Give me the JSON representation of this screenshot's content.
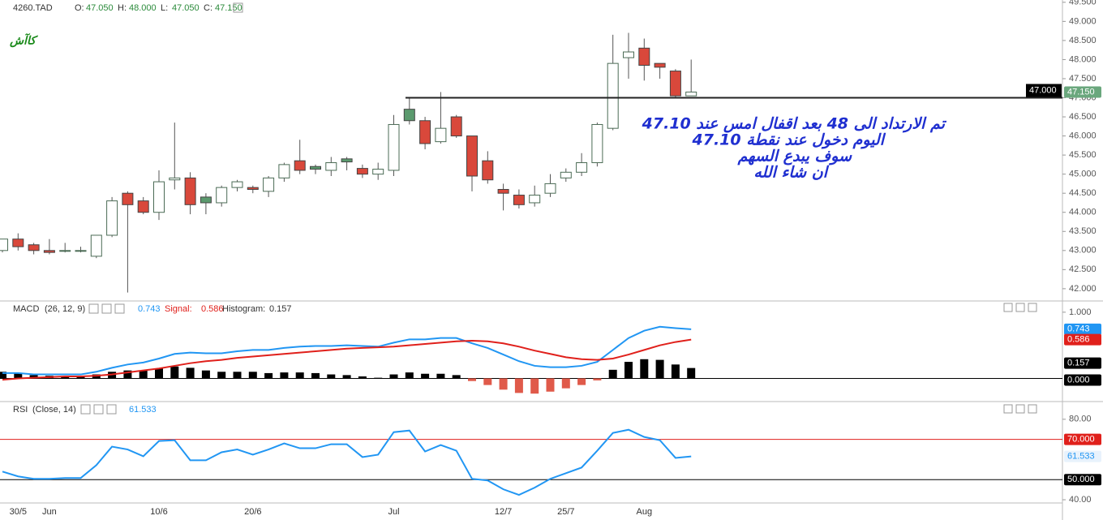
{
  "chart_data": [
    {
      "type": "candlestick",
      "title": "4260.TAD",
      "logo": "كاآش",
      "ohlc_keys": [
        "O:",
        "H:",
        "L:",
        "C:"
      ],
      "last_labels": {
        "open": "47.050",
        "high": "48.000",
        "low": "47.050",
        "close": "47.150"
      },
      "candles": {
        "open": [
          43.0,
          43.3,
          43.15,
          43.0,
          42.98,
          42.98,
          42.85,
          43.4,
          44.5,
          44.3,
          44.0,
          44.85,
          44.9,
          44.4,
          44.25,
          44.65,
          44.65,
          44.55,
          44.9,
          45.35,
          45.2,
          45.1,
          45.4,
          45.15,
          45.0,
          45.1,
          46.7,
          46.4,
          45.85,
          46.5,
          46.0,
          45.35,
          44.6,
          44.45,
          44.25,
          44.5,
          44.9,
          45.05,
          45.3,
          46.2,
          48.05,
          48.3,
          47.9,
          47.7,
          47.05
        ],
        "high": [
          43.3,
          43.45,
          43.2,
          43.3,
          43.2,
          43.1,
          43.4,
          44.4,
          44.55,
          44.4,
          45.1,
          46.35,
          45.05,
          44.5,
          44.7,
          44.85,
          44.7,
          44.95,
          45.3,
          45.9,
          45.25,
          45.45,
          45.45,
          45.25,
          45.3,
          46.55,
          47.0,
          46.5,
          47.15,
          46.55,
          46.0,
          45.6,
          44.75,
          44.6,
          44.7,
          45.0,
          45.15,
          45.55,
          46.35,
          48.65,
          48.7,
          48.55,
          47.9,
          47.75,
          48.0
        ],
        "low": [
          42.95,
          43.0,
          42.9,
          42.9,
          42.95,
          42.95,
          42.8,
          43.35,
          41.9,
          43.95,
          43.8,
          44.6,
          43.95,
          43.95,
          44.15,
          44.55,
          44.5,
          44.4,
          44.8,
          45.0,
          45.0,
          44.95,
          45.1,
          44.9,
          44.85,
          44.95,
          46.3,
          45.65,
          45.8,
          45.95,
          44.55,
          44.75,
          44.05,
          44.1,
          44.15,
          44.4,
          44.8,
          44.95,
          45.2,
          46.15,
          47.5,
          47.45,
          47.5,
          47.0,
          47.05
        ],
        "close": [
          43.3,
          43.1,
          43.0,
          42.95,
          43.0,
          43.0,
          43.4,
          44.3,
          44.2,
          44.0,
          44.8,
          44.9,
          44.2,
          44.25,
          44.65,
          44.8,
          44.6,
          44.9,
          45.25,
          45.1,
          45.13,
          45.3,
          45.32,
          45.0,
          45.13,
          46.3,
          46.4,
          45.8,
          46.2,
          46.0,
          44.95,
          44.85,
          44.5,
          44.2,
          44.45,
          44.75,
          45.05,
          45.3,
          46.3,
          47.9,
          48.2,
          47.85,
          47.8,
          47.05,
          47.15
        ]
      },
      "level": {
        "value": 47.0,
        "label": "47.000"
      },
      "annotation": [
        "تم الارتداد الى 48 بعد اقفال امس عند 47.10",
        "اليوم دخول عند نقطة 47.10",
        "سوف يبدع السهم",
        "ان شاء الله"
      ],
      "ylim": [
        41.7,
        49.56
      ],
      "yticks": [
        {
          "value": 42,
          "label": "42.000"
        },
        {
          "value": 42.5,
          "label": "42.500"
        },
        {
          "value": 43,
          "label": "43.000"
        },
        {
          "value": 43.5,
          "label": "43.500"
        },
        {
          "value": 44,
          "label": "44.000"
        },
        {
          "value": 44.5,
          "label": "44.500"
        },
        {
          "value": 45,
          "label": "45.000"
        },
        {
          "value": 45.5,
          "label": "45.500"
        },
        {
          "value": 46,
          "label": "46.000"
        },
        {
          "value": 46.5,
          "label": "46.500"
        },
        {
          "value": 47,
          "label": "47.000"
        },
        {
          "value": 47.5,
          "label": "47.500"
        },
        {
          "value": 48,
          "label": "48.000"
        },
        {
          "value": 48.5,
          "label": "48.500"
        },
        {
          "value": 49,
          "label": "49.000"
        },
        {
          "value": 49.5,
          "label": "49.500"
        }
      ]
    },
    {
      "type": "macd",
      "title": "MACD",
      "params": "(26, 12, 9)",
      "series": [
        {
          "name": "MACD",
          "color": "#2196f3",
          "values": [
            0.08,
            0.08,
            0.06,
            0.06,
            0.06,
            0.06,
            0.1,
            0.16,
            0.21,
            0.24,
            0.3,
            0.37,
            0.39,
            0.38,
            0.38,
            0.41,
            0.43,
            0.43,
            0.46,
            0.48,
            0.49,
            0.49,
            0.5,
            0.49,
            0.48,
            0.54,
            0.59,
            0.59,
            0.61,
            0.61,
            0.53,
            0.46,
            0.36,
            0.26,
            0.19,
            0.17,
            0.17,
            0.19,
            0.25,
            0.43,
            0.61,
            0.72,
            0.78,
            0.76,
            0.743
          ]
        },
        {
          "name": "Signal:",
          "color": "#e0201b",
          "values": [
            -0.02,
            0.0,
            0.01,
            0.02,
            0.03,
            0.03,
            0.04,
            0.06,
            0.09,
            0.12,
            0.15,
            0.19,
            0.23,
            0.26,
            0.28,
            0.31,
            0.33,
            0.35,
            0.37,
            0.39,
            0.41,
            0.43,
            0.45,
            0.46,
            0.47,
            0.48,
            0.5,
            0.52,
            0.54,
            0.56,
            0.57,
            0.56,
            0.53,
            0.48,
            0.42,
            0.37,
            0.32,
            0.29,
            0.28,
            0.3,
            0.36,
            0.43,
            0.5,
            0.55,
            0.586
          ]
        },
        {
          "name": "Histogram:",
          "color": "#000000",
          "neg_color": "#e05a4a",
          "values": [
            0.1,
            0.08,
            0.05,
            0.04,
            0.03,
            0.03,
            0.06,
            0.1,
            0.12,
            0.12,
            0.15,
            0.18,
            0.16,
            0.12,
            0.1,
            0.1,
            0.1,
            0.08,
            0.09,
            0.09,
            0.08,
            0.06,
            0.05,
            0.03,
            0.01,
            0.06,
            0.09,
            0.07,
            0.07,
            0.05,
            -0.04,
            -0.1,
            -0.17,
            -0.22,
            -0.23,
            -0.2,
            -0.15,
            -0.1,
            -0.03,
            0.13,
            0.25,
            0.29,
            0.28,
            0.21,
            0.157
          ]
        }
      ],
      "zero": {
        "value": 0,
        "label": "0.000"
      },
      "ylim": [
        -0.35,
        1.17
      ],
      "yticks": [
        {
          "value": 1,
          "label": "1.000"
        }
      ]
    },
    {
      "type": "rsi",
      "title": "RSI",
      "params": "(Close, 14)",
      "series": [
        {
          "name": "RSI",
          "color": "#2196f3",
          "values": [
            54,
            51.6,
            50.4,
            50.4,
            50.8,
            50.8,
            57.2,
            66.4,
            65,
            61.6,
            69.2,
            69.6,
            59.6,
            59.6,
            63.6,
            65,
            62.4,
            65,
            68,
            65.6,
            65.6,
            67.6,
            67.6,
            61.2,
            62.4,
            73.6,
            74.4,
            64,
            67.2,
            64.4,
            50.4,
            49.6,
            45.2,
            42.4,
            46,
            50.4,
            53.2,
            56,
            64.4,
            73.2,
            74.8,
            71.2,
            69.6,
            60.8,
            61.533
          ]
        }
      ],
      "levels": [
        {
          "value": 70,
          "label": "70.000",
          "color": "#e0201b"
        },
        {
          "value": 50,
          "label": "50.000",
          "color": "#000000"
        }
      ],
      "categories": [
        null,
        "30/5",
        null,
        "Jun",
        null,
        null,
        null,
        null,
        null,
        null,
        "10/6",
        null,
        null,
        null,
        null,
        null,
        "20/6",
        null,
        null,
        null,
        null,
        null,
        null,
        null,
        null,
        "Jul",
        null,
        null,
        null,
        null,
        null,
        null,
        "12/7",
        null,
        null,
        null,
        "25/7",
        null,
        null,
        null,
        null,
        "Aug",
        null,
        null,
        null
      ],
      "ylim": [
        38.4,
        88.4
      ],
      "yticks": [
        {
          "value": 80,
          "label": "80.00"
        },
        {
          "value": 40,
          "label": "40.00"
        }
      ]
    }
  ]
}
